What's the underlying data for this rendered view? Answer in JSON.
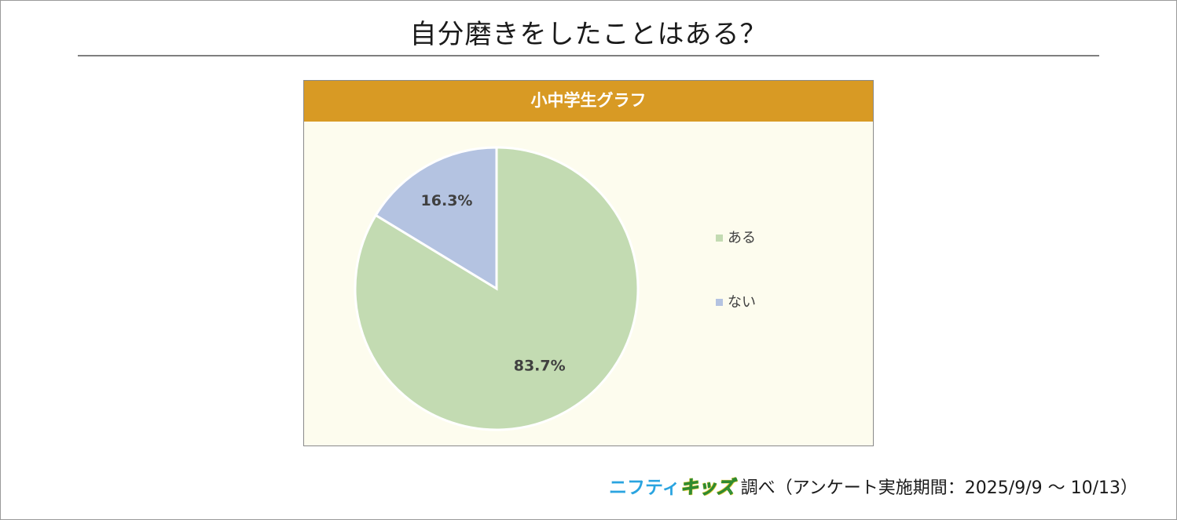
{
  "title": "自分磨きをしたことはある？",
  "footer": {
    "logo_part1": "ニフティ",
    "logo_part2": "キッズ",
    "note": "調べ（アンケート実施期間：2025/9/9 ～ 10/13）"
  },
  "chart_data": {
    "type": "pie",
    "title": "小中学生グラフ",
    "legend_position": "right",
    "slices": [
      {
        "label": "ある",
        "value": 83.7,
        "display": "83.7%",
        "color": "#c3dbb2"
      },
      {
        "label": "ない",
        "value": 16.3,
        "display": "16.3%",
        "color": "#b4c3e1"
      }
    ]
  }
}
